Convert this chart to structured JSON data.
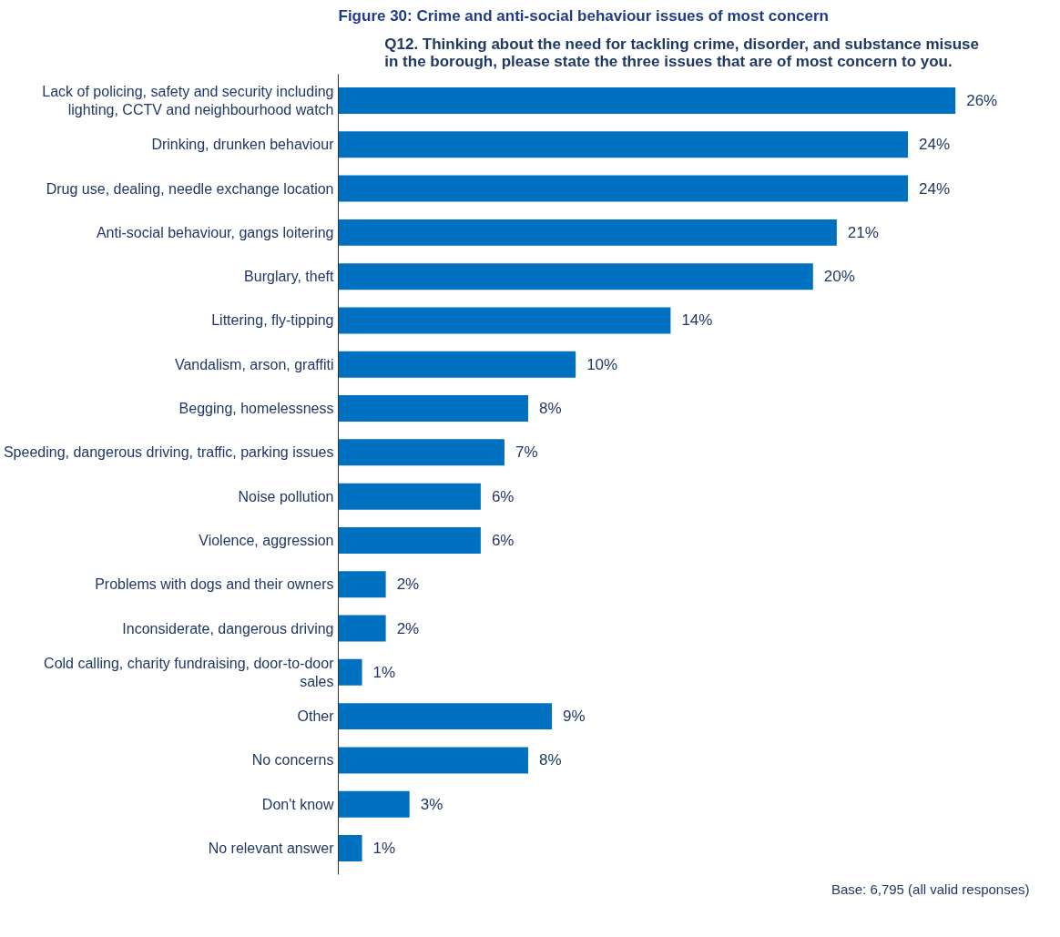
{
  "chart_data": {
    "type": "bar",
    "orientation": "horizontal",
    "title": "Figure 30: Crime and anti-social behaviour issues of most concern",
    "subtitle": "Q12.  Thinking about the need for tackling crime, disorder, and substance misuse\nin the borough, please state the three issues that are of most concern to you.",
    "categories": [
      "Lack of policing, safety and security including lighting, CCTV and neighbourhood watch",
      "Drinking, drunken behaviour",
      "Drug use, dealing, needle exchange location",
      "Anti-social behaviour, gangs loitering",
      "Burglary, theft",
      "Littering, fly-tipping",
      "Vandalism, arson, graffiti",
      "Begging, homelessness",
      "Speeding, dangerous driving, traffic, parking issues",
      "Noise pollution",
      "Violence, aggression",
      "Problems with dogs and their owners",
      "Inconsiderate, dangerous driving",
      "Cold calling, charity fundraising, door-to-door sales",
      "Other",
      "No concerns",
      "Don't know",
      "No relevant answer"
    ],
    "values": [
      26,
      24,
      24,
      21,
      20,
      14,
      10,
      8,
      7,
      6,
      6,
      2,
      2,
      1,
      9,
      8,
      3,
      1
    ],
    "value_labels": [
      "26%",
      "24%",
      "24%",
      "21%",
      "20%",
      "14%",
      "10%",
      "8%",
      "7%",
      "6%",
      "6%",
      "2%",
      "2%",
      "1%",
      "9%",
      "8%",
      "3%",
      "1%"
    ],
    "color": "#0070c0",
    "grid": false,
    "annotations": [
      "Base: 6,795 (all valid responses)"
    ]
  }
}
